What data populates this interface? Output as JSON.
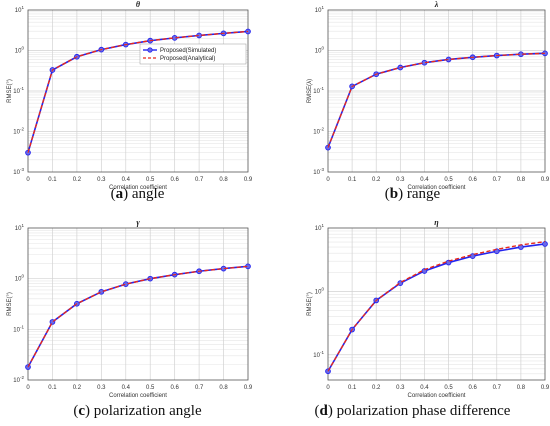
{
  "chart_data": [
    {
      "type": "line",
      "panel": "a",
      "title": "θ",
      "caption_letter": "a",
      "caption_text": "angle",
      "xlabel": "Correlation coefficient",
      "ylabel": "RMSE(°)",
      "x": [
        0,
        0.1,
        0.2,
        0.3,
        0.4,
        0.5,
        0.6,
        0.7,
        0.8,
        0.9
      ],
      "xticks": [
        "0",
        "0.1",
        "0.2",
        "0.3",
        "0.4",
        "0.5",
        "0.6",
        "0.7",
        "0.8",
        "0.9"
      ],
      "yscale": "log",
      "ylim": [
        0.001,
        10
      ],
      "yticks": [
        {
          "base": "10",
          "exp": "-3"
        },
        {
          "base": "10",
          "exp": "-2"
        },
        {
          "base": "10",
          "exp": "-1"
        },
        {
          "base": "10",
          "exp": "0"
        },
        {
          "base": "10",
          "exp": "1"
        }
      ],
      "grid": true,
      "legend_position": "top-right",
      "series": [
        {
          "name": "Proposed(Simulated)",
          "style": "solid-marker",
          "color": "#2424ee",
          "values": [
            0.003,
            0.33,
            0.7,
            1.05,
            1.4,
            1.75,
            2.05,
            2.35,
            2.65,
            2.95
          ]
        },
        {
          "name": "Proposed(Analytical)",
          "style": "dashed",
          "color": "#e8281c",
          "values": [
            0.003,
            0.33,
            0.7,
            1.05,
            1.4,
            1.75,
            2.05,
            2.35,
            2.65,
            2.95
          ]
        }
      ]
    },
    {
      "type": "line",
      "panel": "b",
      "title": "λ",
      "caption_letter": "b",
      "caption_text": "range",
      "xlabel": "Correlation coefficient",
      "ylabel": "RMSE(λ)",
      "x": [
        0,
        0.1,
        0.2,
        0.3,
        0.4,
        0.5,
        0.6,
        0.7,
        0.8,
        0.9
      ],
      "xticks": [
        "0",
        "0.1",
        "0.2",
        "0.3",
        "0.4",
        "0.5",
        "0.6",
        "0.7",
        "0.8",
        "0.9"
      ],
      "yscale": "log",
      "ylim": [
        0.001,
        10
      ],
      "yticks": [
        {
          "base": "10",
          "exp": "-3"
        },
        {
          "base": "10",
          "exp": "-2"
        },
        {
          "base": "10",
          "exp": "-1"
        },
        {
          "base": "10",
          "exp": "0"
        },
        {
          "base": "10",
          "exp": "1"
        }
      ],
      "grid": true,
      "series": [
        {
          "name": "",
          "style": "solid-marker",
          "color": "#2424ee",
          "values": [
            0.004,
            0.13,
            0.26,
            0.38,
            0.5,
            0.6,
            0.68,
            0.75,
            0.81,
            0.85
          ]
        },
        {
          "name": "",
          "style": "dashed",
          "color": "#e8281c",
          "values": [
            0.004,
            0.13,
            0.26,
            0.38,
            0.5,
            0.6,
            0.68,
            0.75,
            0.81,
            0.85
          ]
        }
      ]
    },
    {
      "type": "line",
      "panel": "c",
      "title": "γ",
      "caption_letter": "c",
      "caption_text": "polarization angle",
      "xlabel": "Correlation coefficient",
      "ylabel": "RMSE(°)",
      "x": [
        0,
        0.1,
        0.2,
        0.3,
        0.4,
        0.5,
        0.6,
        0.7,
        0.8,
        0.9
      ],
      "xticks": [
        "0",
        "0.1",
        "0.2",
        "0.3",
        "0.4",
        "0.5",
        "0.6",
        "0.7",
        "0.8",
        "0.9"
      ],
      "yscale": "log",
      "ylim": [
        0.01,
        10
      ],
      "yticks": [
        {
          "base": "10",
          "exp": "-2"
        },
        {
          "base": "10",
          "exp": "-1"
        },
        {
          "base": "10",
          "exp": "0"
        },
        {
          "base": "10",
          "exp": "1"
        }
      ],
      "grid": true,
      "series": [
        {
          "name": "",
          "style": "solid-marker",
          "color": "#2424ee",
          "values": [
            0.018,
            0.14,
            0.32,
            0.55,
            0.78,
            1.0,
            1.2,
            1.4,
            1.58,
            1.75
          ]
        },
        {
          "name": "",
          "style": "dashed",
          "color": "#e8281c",
          "values": [
            0.018,
            0.14,
            0.32,
            0.55,
            0.78,
            1.0,
            1.2,
            1.4,
            1.58,
            1.75
          ]
        }
      ]
    },
    {
      "type": "line",
      "panel": "d",
      "title": "η",
      "caption_letter": "d",
      "caption_text": "polarization phase difference",
      "xlabel": "Correlation coefficient",
      "ylabel": "RMSE(°)",
      "x": [
        0,
        0.1,
        0.2,
        0.3,
        0.4,
        0.5,
        0.6,
        0.7,
        0.8,
        0.9
      ],
      "xticks": [
        "0",
        "0.1",
        "0.2",
        "0.3",
        "0.4",
        "0.5",
        "0.6",
        "0.7",
        "0.8",
        "0.9"
      ],
      "yscale": "log",
      "ylim": [
        0.04,
        10
      ],
      "yticks": [
        {
          "base": "10",
          "exp": "-1"
        },
        {
          "base": "10",
          "exp": "0"
        },
        {
          "base": "10",
          "exp": "1"
        }
      ],
      "grid": true,
      "series": [
        {
          "name": "",
          "style": "solid-marker",
          "color": "#2424ee",
          "values": [
            0.055,
            0.25,
            0.72,
            1.35,
            2.1,
            2.85,
            3.6,
            4.3,
            5.0,
            5.6
          ]
        },
        {
          "name": "",
          "style": "dashed",
          "color": "#e8281c",
          "values": [
            0.055,
            0.25,
            0.72,
            1.38,
            2.2,
            3.0,
            3.8,
            4.6,
            5.4,
            6.1
          ]
        }
      ]
    }
  ]
}
